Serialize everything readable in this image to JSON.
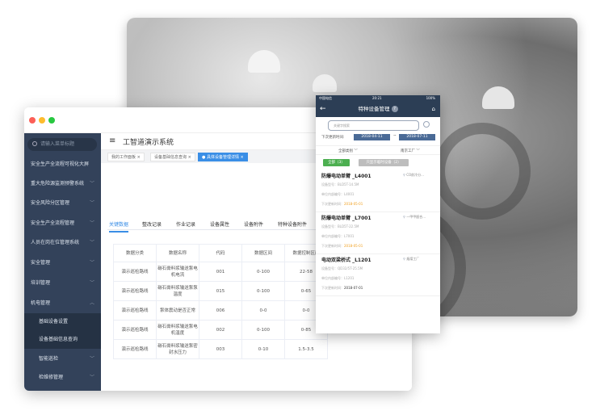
{
  "window": {
    "title": "工智道演示系统",
    "search_placeholder": "请输入菜单标题",
    "menu": [
      {
        "label": "安全生产全流程可视化大屏"
      },
      {
        "label": "重大危险源监测预警系统"
      },
      {
        "label": "安全风险分区管理"
      },
      {
        "label": "安全生产全流程管理"
      },
      {
        "label": "人员在岗在位管理系统"
      },
      {
        "label": "安全管理"
      },
      {
        "label": "培训管理"
      },
      {
        "label": "机电管理"
      },
      {
        "label": "基础设备设置"
      },
      {
        "label": "设备基础信息查询"
      },
      {
        "label": "智能巡检"
      },
      {
        "label": "检维修管理"
      }
    ],
    "tags": [
      "我的工作面板",
      "设备基础信息查询",
      "具体设备管理详情"
    ],
    "tabs": [
      "关键数据",
      "整改记录",
      "作业记录",
      "设备属性",
      "设备附件",
      "特种设备附件"
    ],
    "table": {
      "headers": [
        "数据分类",
        "数据名称",
        "代码",
        "数据区间",
        "数据控制区间"
      ],
      "rows": [
        [
          "演示巡检路线",
          "碳石膏料浆输送泵电机电流",
          "001",
          "0-100",
          "22-58"
        ],
        [
          "演示巡检路线",
          "碳石膏料浆输送泵泵温度",
          "015",
          "0-100",
          "0-65"
        ],
        [
          "演示巡检路线",
          "泵体震动是否正常",
          "006",
          "0-0",
          "0-0"
        ],
        [
          "演示巡检路线",
          "碳石膏料浆输送泵电机温度",
          "002",
          "0-100",
          "0-85"
        ],
        [
          "演示巡检路线",
          "碳石膏料浆输送泵密封水压力",
          "003",
          "0-10",
          "1.5-3.5"
        ]
      ]
    }
  },
  "phone": {
    "carrier": "中国电信",
    "time": "20:21",
    "battery": "100%",
    "title": "特种设备管理",
    "search_placeholder": "关键字搜索",
    "date_label": "下次更新时间:",
    "date_from": "2018-04-11",
    "date_to": "2018-07-11",
    "filter_type": "全部类别",
    "filter_factory": "南京工厂",
    "btn_all": "全部（3）",
    "btn_temp": "只显示临时设备（2）",
    "items": [
      {
        "title": "防爆电动单臂 _L4001",
        "location": "CO前冷分...",
        "model": "设备型号：BLD5T-14.5M",
        "code": "单位内部编号：L4001",
        "next": "下次更新时间：",
        "date": "2018-05-01",
        "date_color": "#f0a020"
      },
      {
        "title": "防爆电动单臂 _L7001",
        "location": "一甲甲醛合...",
        "model": "设备型号：BLD5T-22.5M",
        "code": "单位内部编号：L7001",
        "next": "下次更新时间：",
        "date": "2018-05-01",
        "date_color": "#f0a020"
      },
      {
        "title": "电动双梁桥式 _L1201",
        "location": "烟煤工厂",
        "model": "设备型号：QD32/5T-25.5M",
        "code": "单位内部编号：L1201",
        "next": "下次更新时间：",
        "date": "2018-07-01",
        "date_color": "#333333"
      }
    ]
  },
  "colors": {
    "accent": "#3a8ee6",
    "sidebar": "#33425a",
    "green": "#4caf50"
  }
}
